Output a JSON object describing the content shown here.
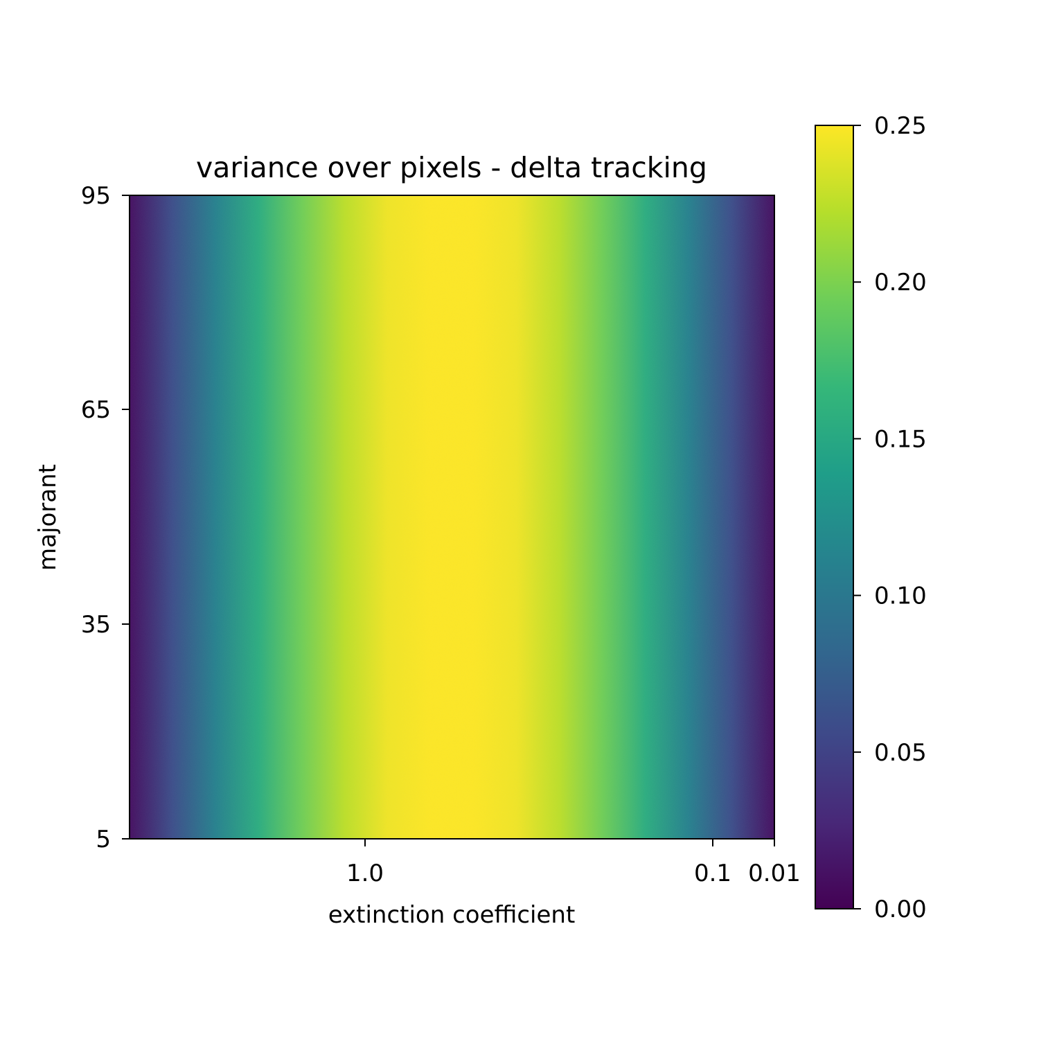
{
  "chart_data": {
    "type": "heatmap",
    "title": "variance over pixels - delta tracking",
    "xlabel": "extinction coefficient",
    "ylabel": "majorant",
    "x_ticks": [
      "1.0",
      "0.1",
      "0.01"
    ],
    "y_ticks": [
      "95",
      "65",
      "35",
      "5"
    ],
    "ylim": [
      5,
      95
    ],
    "colormap": "viridis",
    "colorbar": {
      "ticks": [
        "0.00",
        "0.05",
        "0.10",
        "0.15",
        "0.20",
        "0.25"
      ],
      "range": [
        0,
        0.25
      ]
    },
    "pattern": "variance constant along the majorant axis; peaks at about 0.25 at mid extinction coefficient and falls to about 0.0 at both ends of the extinction coefficient axis",
    "column_profile": [
      0.01,
      0.06,
      0.11,
      0.155,
      0.195,
      0.225,
      0.245,
      0.25,
      0.25,
      0.245,
      0.225,
      0.195,
      0.155,
      0.11,
      0.06,
      0.01
    ],
    "grid": false
  },
  "colors": {
    "background": "#ffffff",
    "axis": "#000000",
    "viridis": [
      "#440154",
      "#482878",
      "#3e4989",
      "#31688e",
      "#26828e",
      "#1f9e89",
      "#35b779",
      "#6ece58",
      "#b5de2b",
      "#fde725"
    ]
  }
}
